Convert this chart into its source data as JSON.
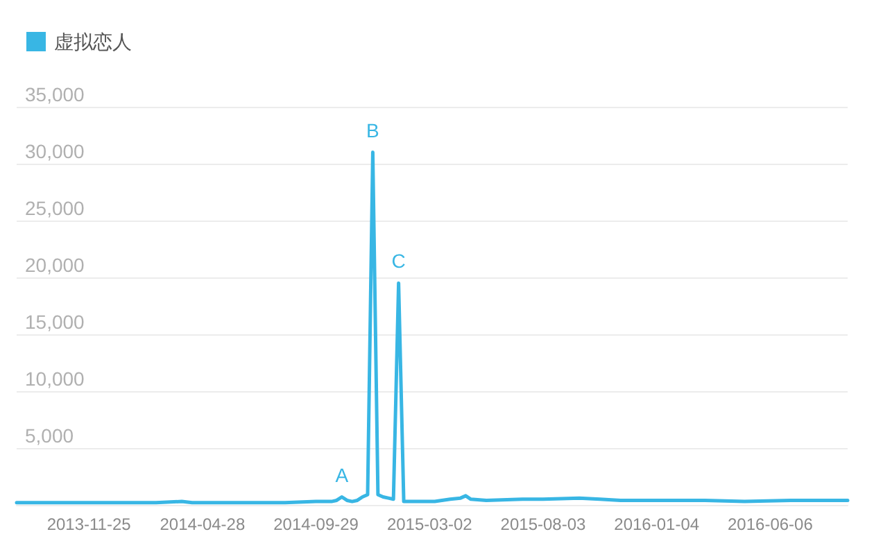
{
  "chart_data": {
    "type": "line",
    "legend": "top left",
    "grid": "y",
    "marker": "none",
    "line_style": "solid",
    "x": [
      "2013-08-19",
      "2013-10-14",
      "2013-12-23",
      "2014-02-24",
      "2014-03-31",
      "2014-04-14",
      "2014-06-16",
      "2014-08-18",
      "2014-09-29",
      "2014-10-20",
      "2014-10-27",
      "2014-11-03",
      "2014-11-10",
      "2014-11-17",
      "2014-11-24",
      "2014-12-01",
      "2014-12-08",
      "2014-12-15",
      "2014-12-22",
      "2014-12-29",
      "2015-01-05",
      "2015-01-12",
      "2015-01-19",
      "2015-01-26",
      "2015-02-09",
      "2015-03-09",
      "2015-03-30",
      "2015-04-13",
      "2015-04-20",
      "2015-04-27",
      "2015-05-18",
      "2015-07-06",
      "2015-08-03",
      "2015-09-21",
      "2015-10-19",
      "2015-11-16",
      "2016-01-04",
      "2016-03-07",
      "2016-05-02",
      "2016-07-04",
      "2016-09-19"
    ],
    "series": [
      {
        "name": "虚拟恋人",
        "color": "#38b6e4",
        "values": [
          200,
          200,
          200,
          200,
          300,
          200,
          200,
          200,
          300,
          300,
          400,
          700,
          400,
          300,
          400,
          700,
          900,
          31000,
          900,
          700,
          600,
          500,
          19500,
          300,
          300,
          300,
          500,
          600,
          800,
          500,
          400,
          500,
          500,
          600,
          500,
          400,
          400,
          400,
          300,
          400,
          400
        ]
      }
    ],
    "xlim": [
      "2013-08-19",
      "2016-09-19"
    ],
    "xticks": [
      "2013-11-25",
      "2014-04-28",
      "2014-09-29",
      "2015-03-02",
      "2015-08-03",
      "2016-01-04",
      "2016-06-06"
    ],
    "ylim": [
      0,
      35000
    ],
    "yticks": [
      {
        "value": 0,
        "label": null
      },
      {
        "value": 5000,
        "label": "5,000"
      },
      {
        "value": 10000,
        "label": "10,000"
      },
      {
        "value": 15000,
        "label": "15,000"
      },
      {
        "value": 20000,
        "label": "20,000"
      },
      {
        "value": 25000,
        "label": "25,000"
      },
      {
        "value": 30000,
        "label": "30,000"
      },
      {
        "value": 35000,
        "label": "35,000"
      }
    ],
    "annotations": [
      {
        "text": "A",
        "x": "2014-11-03",
        "y": 700
      },
      {
        "text": "B",
        "x": "2014-12-15",
        "y": 31000
      },
      {
        "text": "C",
        "x": "2015-01-19",
        "y": 19500
      }
    ]
  }
}
